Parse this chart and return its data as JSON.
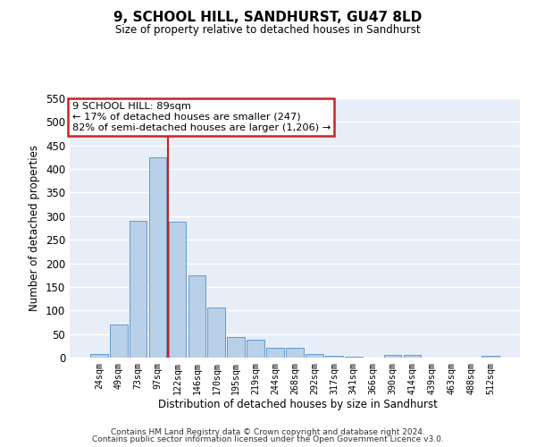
{
  "title": "9, SCHOOL HILL, SANDHURST, GU47 8LD",
  "subtitle": "Size of property relative to detached houses in Sandhurst",
  "xlabel": "Distribution of detached houses by size in Sandhurst",
  "ylabel": "Number of detached properties",
  "categories": [
    "24sqm",
    "49sqm",
    "73sqm",
    "97sqm",
    "122sqm",
    "146sqm",
    "170sqm",
    "195sqm",
    "219sqm",
    "244sqm",
    "268sqm",
    "292sqm",
    "317sqm",
    "341sqm",
    "366sqm",
    "390sqm",
    "414sqm",
    "439sqm",
    "463sqm",
    "488sqm",
    "512sqm"
  ],
  "values": [
    8,
    70,
    291,
    425,
    289,
    175,
    106,
    43,
    38,
    20,
    20,
    7,
    4,
    2,
    0,
    5,
    5,
    0,
    0,
    0,
    4
  ],
  "bar_color": "#b8d0e8",
  "bar_edge_color": "#6699cc",
  "background_color": "#e8eef8",
  "grid_color": "#ffffff",
  "ylim": [
    0,
    550
  ],
  "yticks": [
    0,
    50,
    100,
    150,
    200,
    250,
    300,
    350,
    400,
    450,
    500,
    550
  ],
  "vline_x": 3.5,
  "vline_color": "#cc2222",
  "annotation_line1": "9 SCHOOL HILL: 89sqm",
  "annotation_line2": "← 17% of detached houses are smaller (247)",
  "annotation_line3": "82% of semi-detached houses are larger (1,206) →",
  "annotation_box_color": "#cc2222",
  "footer_line1": "Contains HM Land Registry data © Crown copyright and database right 2024.",
  "footer_line2": "Contains public sector information licensed under the Open Government Licence v3.0."
}
